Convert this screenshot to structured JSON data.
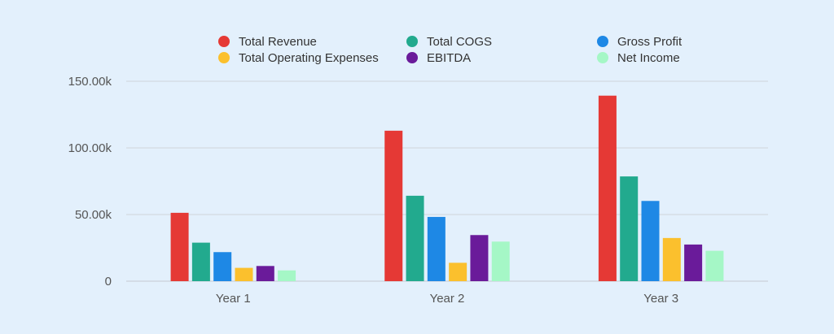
{
  "chart_data": {
    "type": "bar",
    "title": "",
    "xlabel": "",
    "ylabel": "",
    "categories": [
      "Year 1",
      "Year 2",
      "Year 3"
    ],
    "ylim": [
      0,
      150000
    ],
    "yticks": [
      0,
      50000,
      100000,
      150000
    ],
    "ytick_labels": [
      "0",
      "50.00k",
      "100.00k",
      "150.00k"
    ],
    "grid": true,
    "legend_position": "top",
    "series": [
      {
        "name": "Total Revenue",
        "color": "#e53935",
        "values": [
          51300,
          112900,
          139200
        ]
      },
      {
        "name": "Total COGS",
        "color": "#22aa8e",
        "values": [
          28900,
          64100,
          78600
        ]
      },
      {
        "name": "Gross Profit",
        "color": "#1e88e5",
        "values": [
          21800,
          48200,
          60200
        ]
      },
      {
        "name": "Total Operating Expenses",
        "color": "#fbc02d",
        "values": [
          10000,
          13800,
          32400
        ]
      },
      {
        "name": "EBITDA",
        "color": "#6a1b9a",
        "values": [
          11400,
          34600,
          27500
        ]
      },
      {
        "name": "Net Income",
        "color": "#a5f7c6",
        "values": [
          8100,
          29700,
          22800
        ]
      }
    ]
  }
}
